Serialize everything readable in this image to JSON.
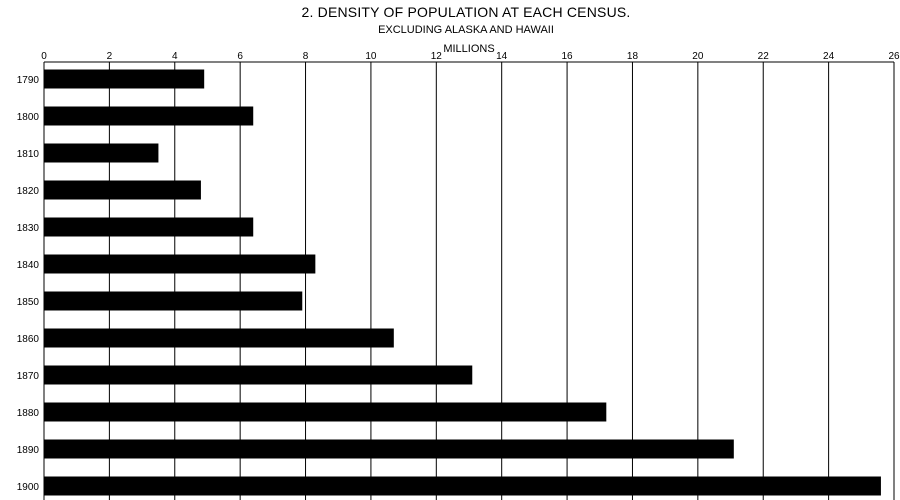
{
  "chart_data": {
    "type": "bar",
    "orientation": "horizontal",
    "title": "2. DENSITY OF POPULATION AT EACH CENSUS.",
    "subtitle": "EXCLUDING ALASKA AND HAWAII",
    "xlabel": "MILLIONS",
    "ylabel": "",
    "xlim": [
      0,
      26
    ],
    "xticks": [
      0,
      2,
      4,
      6,
      8,
      10,
      12,
      14,
      16,
      18,
      20,
      22,
      24,
      26
    ],
    "grid": true,
    "categories": [
      "1790",
      "1800",
      "1810",
      "1820",
      "1830",
      "1840",
      "1850",
      "1860",
      "1870",
      "1880",
      "1890",
      "1900"
    ],
    "values": [
      4.9,
      6.4,
      3.5,
      4.8,
      6.4,
      8.3,
      7.9,
      10.7,
      13.1,
      17.2,
      21.1,
      25.6
    ],
    "bar_color": "#000000"
  }
}
